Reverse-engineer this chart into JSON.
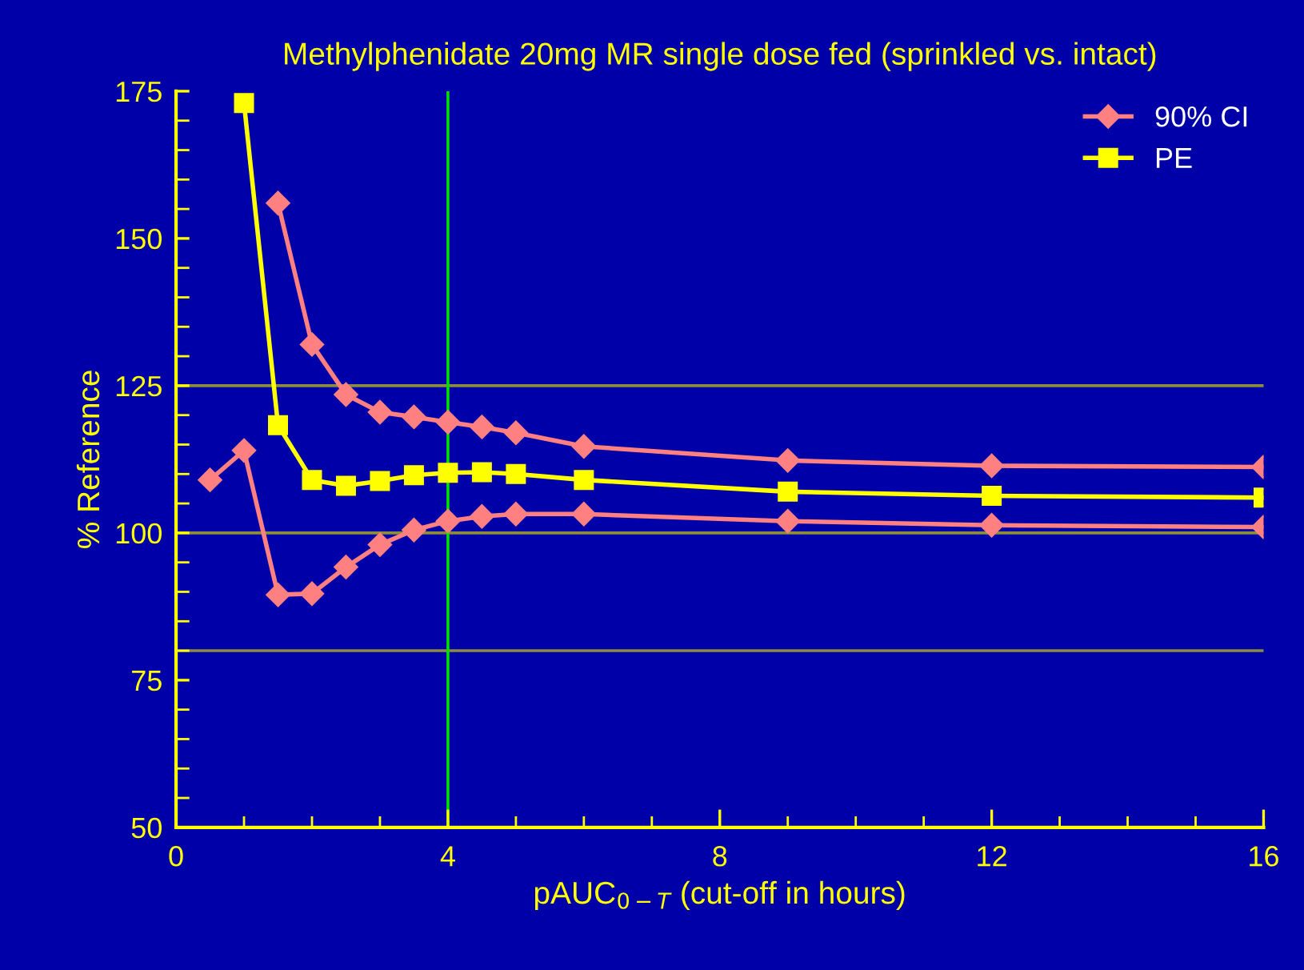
{
  "chart_data": {
    "type": "line",
    "title": "Methylphenidate 20mg MR single dose fed (sprinkled vs. intact)",
    "xlabel": "pAUC$_{0−T}$ (cut-off in hours)",
    "ylabel": "% Reference",
    "series": [
      {
        "name": "90% CI",
        "color": "#ff8080",
        "marker": "diamond",
        "x": [
          0.5,
          1,
          1.5,
          2,
          2.5,
          3,
          3.5,
          4,
          4.5,
          5,
          6,
          9,
          12,
          16
        ],
        "values": [
          109,
          114,
          89.5,
          89.7,
          94.2,
          98,
          100.5,
          102,
          102.8,
          103.2,
          103.2,
          102,
          101.3,
          101
        ]
      },
      {
        "color": "#ff8080",
        "marker": "diamond",
        "x": [
          1.5,
          2,
          2.5,
          3,
          3.5,
          4,
          4.5,
          5,
          6,
          9,
          12,
          16
        ],
        "values": [
          156,
          132,
          123.5,
          120.5,
          119.7,
          118.8,
          118,
          117,
          114.7,
          112.3,
          111.4,
          111.2
        ]
      },
      {
        "name": "PE",
        "color": "#ffff00",
        "marker": "square",
        "x": [
          1,
          1.5,
          2,
          2.5,
          3,
          3.5,
          4,
          4.5,
          5,
          6,
          9,
          12,
          16
        ],
        "values": [
          173,
          118.3,
          109,
          108,
          108.8,
          109.8,
          110.2,
          110.3,
          110,
          109,
          107,
          106.3,
          106
        ]
      }
    ],
    "xlim": [
      0,
      16
    ],
    "xticks": [
      0,
      4,
      8,
      12,
      16
    ],
    "ylim": [
      50,
      175
    ],
    "yticks": [
      50,
      75,
      100,
      125,
      150,
      175
    ],
    "ref_lines": [
      {
        "axis": "y",
        "value": 80,
        "color": "#8c8c3c"
      },
      {
        "axis": "y",
        "value": 100,
        "color": "#8c8c3c"
      },
      {
        "axis": "y",
        "value": 125,
        "color": "#8c8c3c"
      },
      {
        "axis": "x",
        "value": 4,
        "color": "#00e000"
      }
    ],
    "grid": false,
    "legend": "top right",
    "line_style": "solid"
  }
}
